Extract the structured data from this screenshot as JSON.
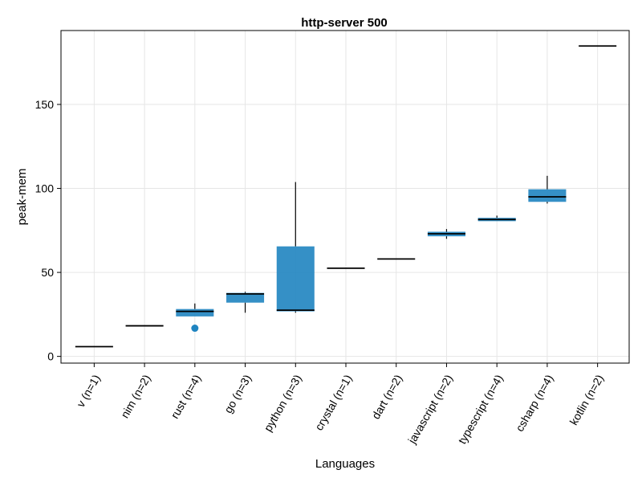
{
  "chart_data": {
    "type": "box",
    "title": "http-server 500",
    "xlabel": "Languages",
    "ylabel": "peak-mem",
    "ylim": [
      -4,
      194
    ],
    "yticks": [
      0,
      50,
      100,
      150
    ],
    "grid": true,
    "legend": "none",
    "box_color": "#1f84c0",
    "median_color": "#000000",
    "categories": [
      "v (n=1)",
      "nim (n=2)",
      "rust (n=4)",
      "go (n=3)",
      "python (n=3)",
      "crystal (n=1)",
      "dart (n=2)",
      "javascript (n=2)",
      "typescript (n=4)",
      "csharp (n=4)",
      "kotlin (n=2)"
    ],
    "boxes": [
      {
        "q1": 5.8,
        "median": 5.8,
        "q3": 5.8,
        "whisker_low": 5.8,
        "whisker_high": 5.8,
        "outliers": []
      },
      {
        "q1": 18.2,
        "median": 18.2,
        "q3": 18.2,
        "whisker_low": 18.2,
        "whisker_high": 18.2,
        "outliers": []
      },
      {
        "q1": 23.8,
        "median": 26.8,
        "q3": 28.2,
        "whisker_low": 23.8,
        "whisker_high": 31.5,
        "outliers": [
          16.8
        ]
      },
      {
        "q1": 32.0,
        "median": 37.2,
        "q3": 37.8,
        "whisker_low": 26.0,
        "whisker_high": 38.5,
        "outliers": []
      },
      {
        "q1": 26.8,
        "median": 27.5,
        "q3": 65.5,
        "whisker_low": 26.0,
        "whisker_high": 103.8,
        "outliers": []
      },
      {
        "q1": 52.5,
        "median": 52.5,
        "q3": 52.5,
        "whisker_low": 52.5,
        "whisker_high": 52.5,
        "outliers": []
      },
      {
        "q1": 58.0,
        "median": 58.0,
        "q3": 58.0,
        "whisker_low": 58.0,
        "whisker_high": 58.0,
        "outliers": []
      },
      {
        "q1": 71.5,
        "median": 73.0,
        "q3": 74.2,
        "whisker_low": 70.0,
        "whisker_high": 75.8,
        "outliers": []
      },
      {
        "q1": 80.5,
        "median": 81.5,
        "q3": 82.5,
        "whisker_low": 80.5,
        "whisker_high": 83.8,
        "outliers": []
      },
      {
        "q1": 92.0,
        "median": 95.0,
        "q3": 99.5,
        "whisker_low": 91.0,
        "whisker_high": 107.5,
        "outliers": []
      },
      {
        "q1": 184.8,
        "median": 184.8,
        "q3": 184.8,
        "whisker_low": 184.8,
        "whisker_high": 184.8,
        "outliers": []
      }
    ]
  }
}
